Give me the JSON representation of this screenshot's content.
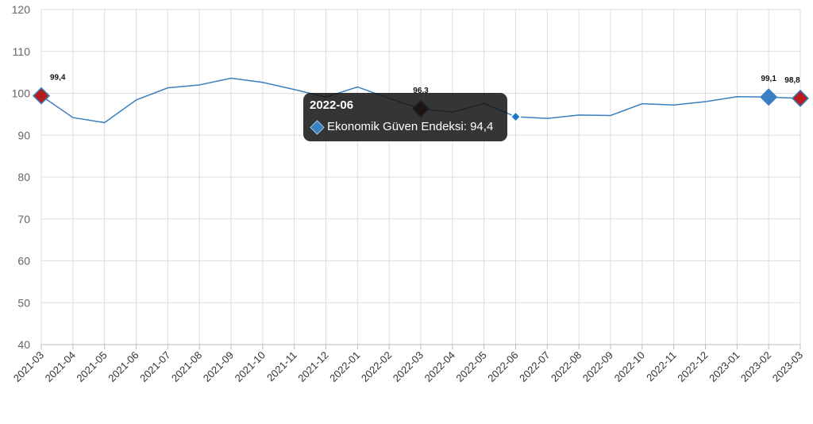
{
  "chart_data": {
    "type": "line",
    "title": "",
    "xlabel": "",
    "ylabel": "",
    "ylim": [
      40,
      120
    ],
    "yticks": [
      40,
      50,
      60,
      70,
      80,
      90,
      100,
      110,
      120
    ],
    "grid": true,
    "categories": [
      "2021-03",
      "2021-04",
      "2021-05",
      "2021-06",
      "2021-07",
      "2021-08",
      "2021-09",
      "2021-10",
      "2021-11",
      "2021-12",
      "2022-01",
      "2022-02",
      "2022-03",
      "2022-04",
      "2022-05",
      "2022-06",
      "2022-07",
      "2022-08",
      "2022-09",
      "2022-10",
      "2022-11",
      "2022-12",
      "2023-01",
      "2023-02",
      "2023-03"
    ],
    "series": [
      {
        "name": "Ekonomik Güven Endeksi",
        "color": "#3a7fc1",
        "values": [
          99.4,
          94.2,
          93.0,
          98.4,
          101.3,
          102.0,
          103.6,
          102.6,
          100.9,
          99.1,
          101.5,
          98.8,
          96.3,
          95.5,
          97.6,
          94.4,
          94.0,
          94.8,
          94.7,
          97.5,
          97.2,
          98.0,
          99.2,
          99.1,
          98.8
        ]
      }
    ],
    "highlighted_points": [
      {
        "category": "2021-03",
        "label": "99,4",
        "color": "#b71c1c"
      },
      {
        "category": "2022-03",
        "label": "96,3",
        "color": "#5a0f0f"
      },
      {
        "category": "2023-02",
        "label": "99,1",
        "color": "#3a7fc1"
      },
      {
        "category": "2023-03",
        "label": "98,8",
        "color": "#b71c1c"
      }
    ],
    "tooltip": {
      "category": "2022-06",
      "title": "2022-06",
      "series_name": "Ekonomik Güven Endeksi",
      "value_text": "94,4",
      "line": "Ekonomik Güven Endeksi: 94,4"
    }
  }
}
